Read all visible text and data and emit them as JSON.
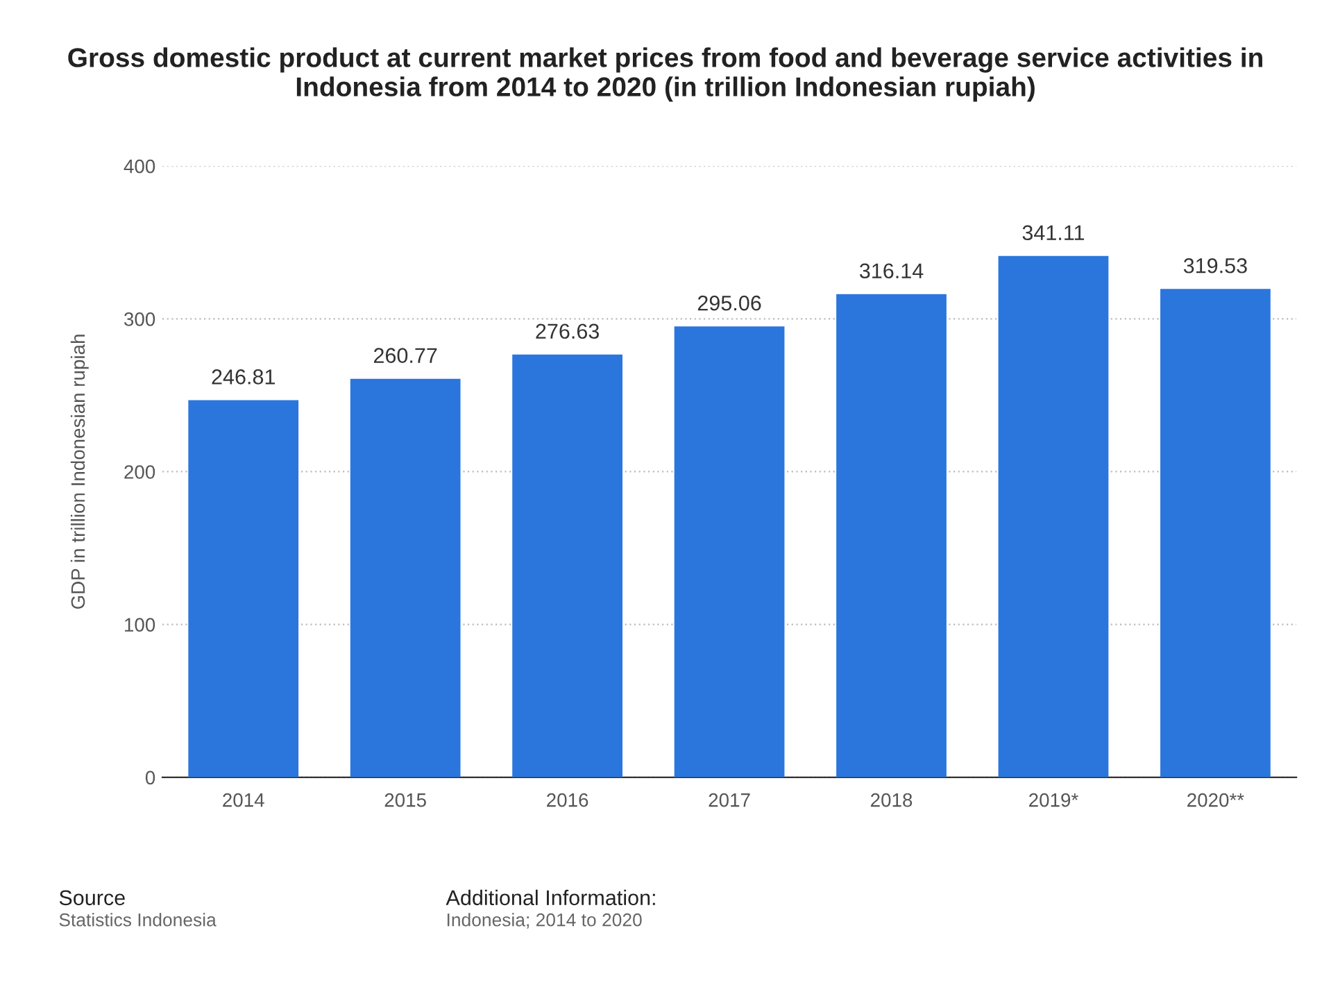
{
  "chart_data": {
    "type": "bar",
    "title": "Gross domestic product at current market prices from food and beverage service activities in Indonesia from 2014 to 2020 (in trillion Indonesian rupiah)",
    "ylabel": "GDP in trillion Indonesian rupiah",
    "categories": [
      "2014",
      "2015",
      "2016",
      "2017",
      "2018",
      "2019*",
      "2020**"
    ],
    "values": [
      246.81,
      260.77,
      276.63,
      295.06,
      316.14,
      341.11,
      319.53
    ],
    "color": "#2a76dd",
    "ylim": [
      0,
      400
    ],
    "yticks": [
      0,
      100,
      200,
      300,
      400
    ],
    "grid": "y",
    "data_labels": true,
    "annotations": [
      "Source",
      "Statistics Indonesia",
      "Additional Information:",
      "Indonesia; 2014 to 2020"
    ]
  }
}
